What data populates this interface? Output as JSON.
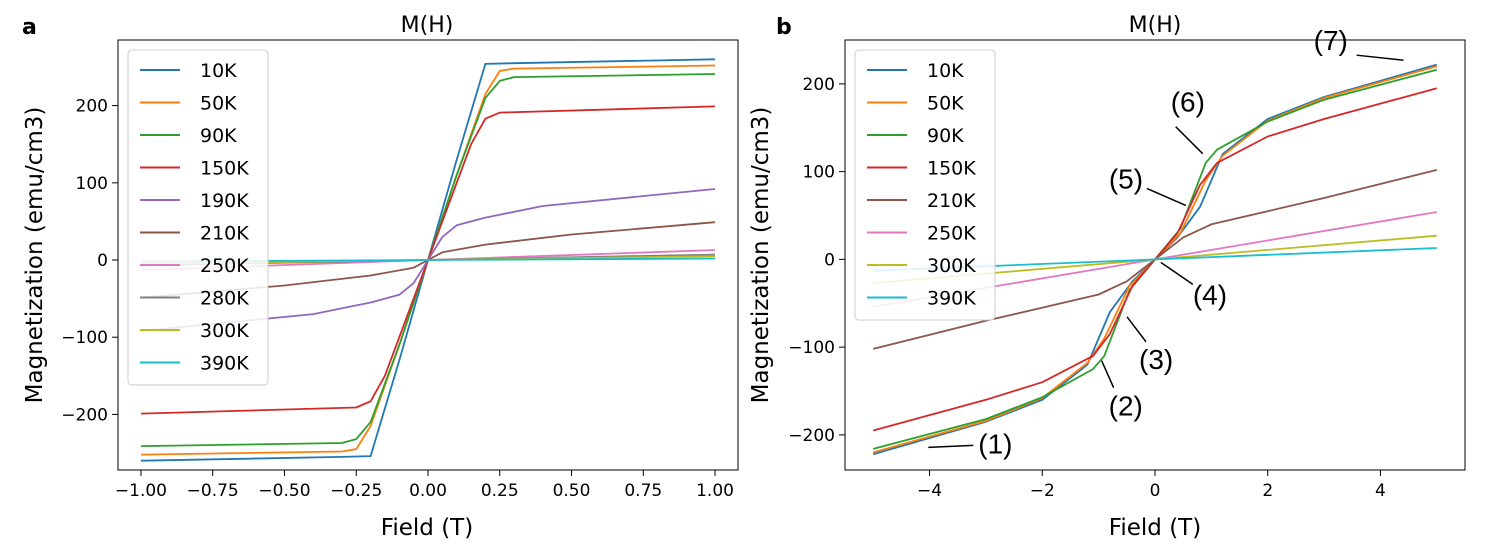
{
  "colors": {
    "10K": "#1f77b4",
    "50K": "#ff7f0e",
    "90K": "#2ca02c",
    "150K": "#d62728",
    "190K": "#9467bd",
    "210K": "#8c564b",
    "250K": "#e377c2",
    "280K": "#7f7f7f",
    "300K": "#bcbd22",
    "390K": "#17becf"
  },
  "chart_data": [
    {
      "panel": "a",
      "type": "line",
      "title": "M(H)",
      "xlabel": "Field (T)",
      "ylabel": "Magnetization (emu/cm3)",
      "xlim": [
        -1.08,
        1.08
      ],
      "ylim": [
        -272,
        285
      ],
      "xticks": [
        -1.0,
        -0.75,
        -0.5,
        -0.25,
        0.0,
        0.25,
        0.5,
        0.75,
        1.0
      ],
      "xtick_labels": [
        "−1.00",
        "−0.75",
        "−0.50",
        "−0.25",
        "0.00",
        "0.25",
        "0.50",
        "0.75",
        "1.00"
      ],
      "yticks": [
        -200,
        -100,
        0,
        100,
        200
      ],
      "ytick_labels": [
        "−200",
        "−100",
        "0",
        "100",
        "200"
      ],
      "legend_position": "upper-left",
      "series": [
        {
          "name": "10K",
          "x": [
            -1,
            -0.3,
            -0.2,
            -0.1,
            0,
            0.1,
            0.2,
            0.3,
            1
          ],
          "y": [
            -260,
            -255,
            -254,
            -130,
            0,
            130,
            254,
            255,
            260
          ]
        },
        {
          "name": "50K",
          "x": [
            -1,
            -0.3,
            -0.25,
            -0.2,
            -0.1,
            0,
            0.1,
            0.2,
            0.25,
            0.3,
            1
          ],
          "y": [
            -252,
            -248,
            -245,
            -215,
            -110,
            0,
            110,
            215,
            245,
            248,
            252
          ]
        },
        {
          "name": "90K",
          "x": [
            -1,
            -0.3,
            -0.25,
            -0.2,
            -0.1,
            0,
            0.1,
            0.2,
            0.25,
            0.3,
            1
          ],
          "y": [
            -241,
            -237,
            -232,
            -210,
            -110,
            0,
            110,
            210,
            232,
            237,
            241
          ]
        },
        {
          "name": "150K",
          "x": [
            -1,
            -0.25,
            -0.2,
            -0.15,
            -0.1,
            0,
            0.1,
            0.15,
            0.2,
            0.25,
            1
          ],
          "y": [
            -199,
            -191,
            -183,
            -150,
            -100,
            0,
            100,
            150,
            183,
            191,
            199
          ]
        },
        {
          "name": "190K",
          "x": [
            -1,
            -0.4,
            -0.2,
            -0.1,
            -0.05,
            0,
            0.05,
            0.1,
            0.2,
            0.4,
            1
          ],
          "y": [
            -92,
            -70,
            -55,
            -45,
            -30,
            0,
            30,
            45,
            55,
            70,
            92
          ]
        },
        {
          "name": "210K",
          "x": [
            -1,
            -0.5,
            -0.2,
            -0.05,
            0,
            0.05,
            0.2,
            0.5,
            1
          ],
          "y": [
            -49,
            -33,
            -20,
            -10,
            0,
            10,
            20,
            33,
            49
          ]
        },
        {
          "name": "250K",
          "x": [
            -1,
            0,
            1
          ],
          "y": [
            -13,
            0,
            13
          ]
        },
        {
          "name": "280K",
          "x": [
            -1,
            0,
            1
          ],
          "y": [
            -7,
            0,
            7
          ]
        },
        {
          "name": "300K",
          "x": [
            -1,
            0,
            1
          ],
          "y": [
            -5,
            0,
            5
          ]
        },
        {
          "name": "390K",
          "x": [
            -1,
            0,
            1
          ],
          "y": [
            -2,
            0,
            2
          ]
        }
      ]
    },
    {
      "panel": "b",
      "type": "line",
      "title": "M(H)",
      "xlabel": "Field (T)",
      "ylabel": "Magnetization (emu/cm3)",
      "xlim": [
        -5.5,
        5.5
      ],
      "ylim": [
        -240,
        250
      ],
      "xticks": [
        -4,
        -2,
        0,
        2,
        4
      ],
      "xtick_labels": [
        "−4",
        "−2",
        "0",
        "2",
        "4"
      ],
      "yticks": [
        -200,
        -100,
        0,
        100,
        200
      ],
      "ytick_labels": [
        "−200",
        "−100",
        "0",
        "100",
        "200"
      ],
      "legend_position": "upper-left",
      "series": [
        {
          "name": "10K",
          "x": [
            -5,
            -3,
            -2,
            -1.2,
            -0.8,
            -0.4,
            0,
            0.4,
            0.8,
            1.2,
            2,
            3,
            5
          ],
          "y": [
            -222,
            -185,
            -160,
            -120,
            -60,
            -25,
            0,
            25,
            60,
            120,
            160,
            185,
            222
          ]
        },
        {
          "name": "50K",
          "x": [
            -5,
            -3,
            -2,
            -1.2,
            -0.9,
            -0.45,
            0,
            0.45,
            0.9,
            1.2,
            2,
            3,
            5
          ],
          "y": [
            -220,
            -184,
            -158,
            -118,
            -90,
            -30,
            0,
            30,
            90,
            118,
            158,
            184,
            220
          ]
        },
        {
          "name": "90K",
          "x": [
            -5,
            -3,
            -2,
            -1.1,
            -0.9,
            -0.45,
            0,
            0.45,
            0.9,
            1.1,
            2,
            3,
            5
          ],
          "y": [
            -216,
            -182,
            -157,
            -125,
            -110,
            -35,
            0,
            35,
            110,
            125,
            157,
            182,
            216
          ]
        },
        {
          "name": "150K",
          "x": [
            -5,
            -3,
            -2,
            -1.1,
            -0.8,
            -0.4,
            0,
            0.4,
            0.8,
            1.1,
            2,
            3,
            5
          ],
          "y": [
            -195,
            -160,
            -140,
            -110,
            -85,
            -30,
            0,
            30,
            85,
            110,
            140,
            160,
            195
          ]
        },
        {
          "name": "210K",
          "x": [
            -5,
            -3,
            -1,
            -0.5,
            0,
            0.5,
            1,
            3,
            5
          ],
          "y": [
            -102,
            -70,
            -40,
            -25,
            0,
            25,
            40,
            70,
            102
          ]
        },
        {
          "name": "250K",
          "x": [
            -5,
            0,
            5
          ],
          "y": [
            -54,
            0,
            54
          ]
        },
        {
          "name": "300K",
          "x": [
            -5,
            0,
            5
          ],
          "y": [
            -27,
            0,
            27
          ]
        },
        {
          "name": "390K",
          "x": [
            -5,
            0,
            5
          ],
          "y": [
            -13,
            0,
            13
          ]
        }
      ],
      "annotations": [
        {
          "label": "(1)",
          "x": -4.2,
          "y": -212
        },
        {
          "label": "(2)",
          "x": -1.0,
          "y": -112
        },
        {
          "label": "(3)",
          "x": -0.55,
          "y": -62
        },
        {
          "label": "(4)",
          "x": 0.05,
          "y": 0
        },
        {
          "label": "(5)",
          "x": 0.6,
          "y": 58
        },
        {
          "label": "(6)",
          "x": 0.9,
          "y": 117
        },
        {
          "label": "(7)",
          "x": 4.5,
          "y": 227
        }
      ]
    }
  ],
  "panels": {
    "a": {
      "letter": "a"
    },
    "b": {
      "letter": "b"
    }
  }
}
